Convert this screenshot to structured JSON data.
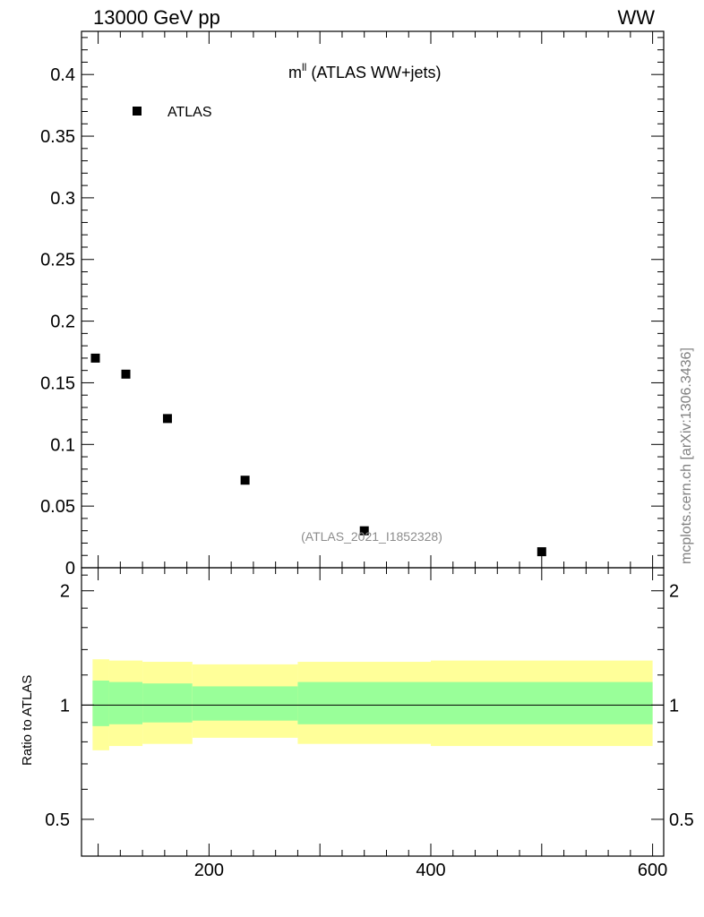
{
  "header": {
    "energy_label": "13000 GeV pp",
    "process_label": "WW"
  },
  "side_label": "mcplots.cern.ch [arXiv:1306.3436]",
  "chart_data": [
    {
      "type": "scatter",
      "title": "m",
      "title_superscript": "ll",
      "title_suffix": "(ATLAS WW+jets)",
      "watermark": "(ATLAS_2021_I1852328)",
      "legend": {
        "entries": [
          "ATLAS"
        ],
        "placement": "top-left"
      },
      "xlim": [
        85,
        610
      ],
      "ylim": [
        0,
        0.435
      ],
      "yticks": [
        0,
        0.05,
        0.1,
        0.15,
        0.2,
        0.25,
        0.3,
        0.35,
        0.4
      ],
      "ytick_labels": [
        "0",
        "0.05",
        "0.1",
        "0.15",
        "0.2",
        "0.25",
        "0.3",
        "0.35",
        "0.4"
      ],
      "series": [
        {
          "name": "ATLAS",
          "marker": "square",
          "color": "#000000",
          "x": [
            97.5,
            125,
            162.5,
            232.5,
            340,
            500
          ],
          "y": [
            0.17,
            0.157,
            0.121,
            0.071,
            0.03,
            0.013
          ]
        }
      ]
    },
    {
      "type": "area",
      "ylabel": "Ratio to ATLAS",
      "xlim": [
        85,
        610
      ],
      "ylim": [
        0.4,
        2.3
      ],
      "log_y": true,
      "yticks": [
        0.5,
        1,
        2
      ],
      "ytick_labels": [
        "0.5",
        "1",
        "2"
      ],
      "xticks": [
        200,
        400,
        600
      ],
      "xtick_labels": [
        "200",
        "400",
        "600"
      ],
      "reference_line": 1,
      "bins": [
        {
          "xlo": 95,
          "xhi": 110,
          "inner": [
            0.88,
            1.16
          ],
          "outer": [
            0.76,
            1.32
          ]
        },
        {
          "xlo": 110,
          "xhi": 140,
          "inner": [
            0.89,
            1.15
          ],
          "outer": [
            0.78,
            1.31
          ]
        },
        {
          "xlo": 140,
          "xhi": 185,
          "inner": [
            0.9,
            1.14
          ],
          "outer": [
            0.79,
            1.3
          ]
        },
        {
          "xlo": 185,
          "xhi": 280,
          "inner": [
            0.91,
            1.12
          ],
          "outer": [
            0.82,
            1.28
          ]
        },
        {
          "xlo": 280,
          "xhi": 400,
          "inner": [
            0.89,
            1.15
          ],
          "outer": [
            0.79,
            1.3
          ]
        },
        {
          "xlo": 400,
          "xhi": 600,
          "inner": [
            0.89,
            1.15
          ],
          "outer": [
            0.78,
            1.31
          ]
        }
      ],
      "band_colors": {
        "inner": "#99ff99",
        "outer": "#ffff99"
      }
    }
  ]
}
